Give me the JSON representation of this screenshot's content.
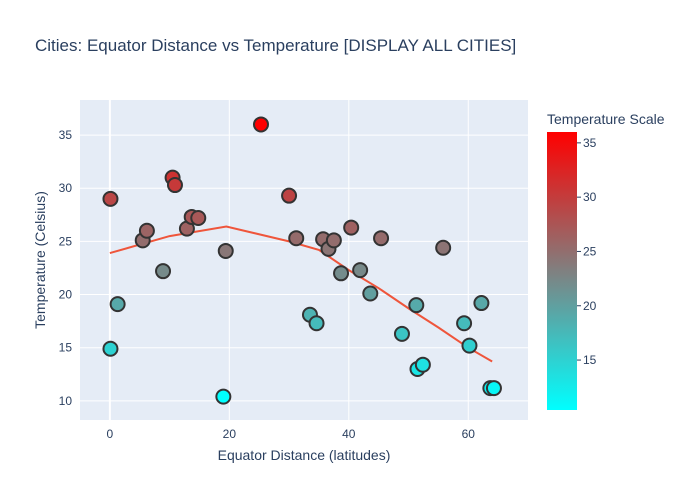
{
  "chart_data": {
    "type": "scatter",
    "title": "Cities: Equator Distance vs Temperature [DISPLAY ALL CITIES]",
    "xlabel": "Equator Distance (latitudes)",
    "ylabel": "Temperature (Celsius)",
    "xlim": [
      -5,
      70
    ],
    "ylim": [
      8.2,
      38.3
    ],
    "x_ticks": [
      0,
      20,
      40,
      60
    ],
    "y_ticks": [
      10,
      15,
      20,
      25,
      30,
      35
    ],
    "grid": true,
    "plot_background": "#e5ecf6",
    "colorbar": {
      "title": "Temperature Scale",
      "range": [
        10.4,
        36.0
      ],
      "ticks": [
        15,
        20,
        25,
        30,
        35
      ],
      "color_low": "#00ffff",
      "color_mid": "#808080",
      "color_high": "#ff0000"
    },
    "points": [
      {
        "x": 0.1,
        "y": 14.9
      },
      {
        "x": 0.1,
        "y": 29.0
      },
      {
        "x": 1.3,
        "y": 19.1
      },
      {
        "x": 5.5,
        "y": 25.1
      },
      {
        "x": 6.2,
        "y": 26.0
      },
      {
        "x": 8.9,
        "y": 22.2
      },
      {
        "x": 10.5,
        "y": 31.0
      },
      {
        "x": 10.9,
        "y": 30.3
      },
      {
        "x": 12.9,
        "y": 26.2
      },
      {
        "x": 13.7,
        "y": 27.3
      },
      {
        "x": 14.8,
        "y": 27.2
      },
      {
        "x": 19.0,
        "y": 10.4
      },
      {
        "x": 19.4,
        "y": 24.1
      },
      {
        "x": 25.3,
        "y": 36.0
      },
      {
        "x": 30.0,
        "y": 29.3
      },
      {
        "x": 31.2,
        "y": 25.3
      },
      {
        "x": 33.5,
        "y": 18.1
      },
      {
        "x": 34.6,
        "y": 17.3
      },
      {
        "x": 35.7,
        "y": 25.2
      },
      {
        "x": 36.6,
        "y": 24.3
      },
      {
        "x": 37.5,
        "y": 25.1
      },
      {
        "x": 38.7,
        "y": 22.0
      },
      {
        "x": 40.4,
        "y": 26.3
      },
      {
        "x": 41.9,
        "y": 22.3
      },
      {
        "x": 43.6,
        "y": 20.1
      },
      {
        "x": 45.4,
        "y": 25.3
      },
      {
        "x": 48.9,
        "y": 16.3
      },
      {
        "x": 51.3,
        "y": 19.0
      },
      {
        "x": 51.5,
        "y": 13.0
      },
      {
        "x": 52.4,
        "y": 13.4
      },
      {
        "x": 55.8,
        "y": 24.4
      },
      {
        "x": 59.3,
        "y": 17.3
      },
      {
        "x": 60.2,
        "y": 15.2
      },
      {
        "x": 62.2,
        "y": 19.2
      },
      {
        "x": 63.7,
        "y": 11.2
      },
      {
        "x": 64.3,
        "y": 11.2
      }
    ],
    "trend_line": {
      "color": "#ef553b",
      "x": [
        0,
        10,
        19.5,
        30,
        35,
        40,
        45,
        50,
        55,
        60,
        64
      ],
      "y": [
        23.9,
        25.5,
        26.4,
        25.0,
        24.2,
        22.3,
        20.6,
        18.7,
        16.9,
        15.0,
        13.7
      ]
    }
  }
}
